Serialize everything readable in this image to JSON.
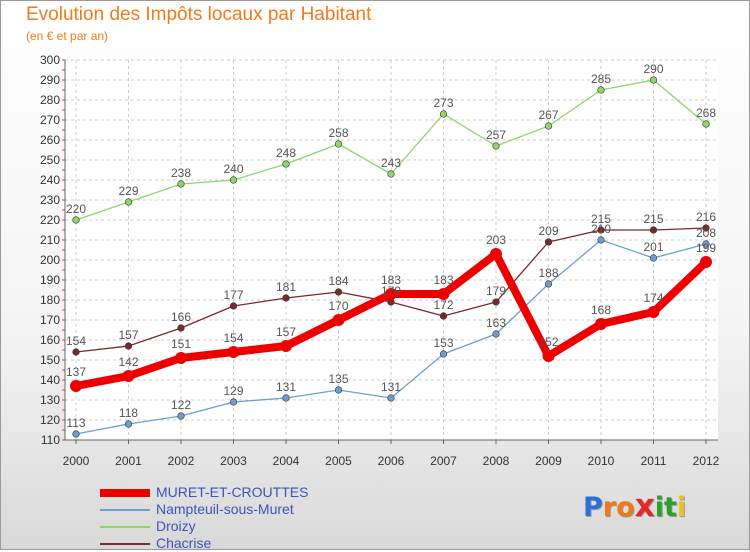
{
  "title": "Evolution des Impôts locaux par Habitant",
  "subtitle": "(en € et par an)",
  "logo": {
    "text": "Proxiti",
    "letters": [
      "P",
      "r",
      "o",
      "x",
      "i",
      "t",
      "i"
    ],
    "colors": [
      "#2e6fd6",
      "#f07a1a",
      "#f07a1a",
      "#e02a2a",
      "#2ca02c",
      "#2ca02c",
      "#e8c21e"
    ]
  },
  "chart_data": {
    "type": "line",
    "title": "Evolution des Impôts locaux par Habitant",
    "subtitle": "(en € et par an)",
    "x": [
      "2000",
      "2001",
      "2002",
      "2003",
      "2004",
      "2005",
      "2006",
      "2007",
      "2008",
      "2009",
      "2010",
      "2011",
      "2012"
    ],
    "ylim": [
      110,
      300
    ],
    "yticks": [
      110,
      120,
      130,
      140,
      150,
      160,
      170,
      180,
      190,
      200,
      210,
      220,
      230,
      240,
      250,
      260,
      270,
      280,
      290,
      300
    ],
    "grid": true,
    "legend_position": "bottom-left",
    "series": [
      {
        "name": "MURET-ET-CROUTTES",
        "color": "#ee0000",
        "thick": true,
        "values": [
          137,
          142,
          151,
          154,
          157,
          170,
          183,
          183,
          203,
          152,
          168,
          174,
          199
        ]
      },
      {
        "name": "Nampteuil-sous-Muret",
        "color": "#6c9fd0",
        "thick": false,
        "values": [
          113,
          118,
          122,
          129,
          131,
          135,
          131,
          153,
          163,
          188,
          210,
          201,
          208
        ]
      },
      {
        "name": "Droizy",
        "color": "#8ed56a",
        "thick": false,
        "values": [
          220,
          229,
          238,
          240,
          248,
          258,
          243,
          273,
          257,
          267,
          285,
          290,
          268
        ]
      },
      {
        "name": "Chacrise",
        "color": "#7a2a2a",
        "thick": false,
        "values": [
          154,
          157,
          166,
          177,
          181,
          184,
          179,
          172,
          179,
          209,
          215,
          215,
          216
        ]
      }
    ]
  }
}
